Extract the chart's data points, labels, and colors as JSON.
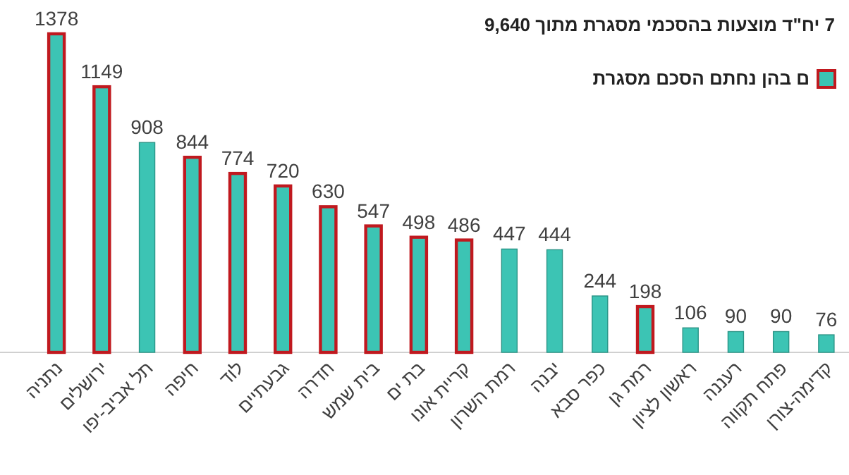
{
  "chart_data": {
    "type": "bar",
    "title": "7 יח\"ד מוצעות בהסכמי מסגרת מתוך 9,640",
    "categories": [
      "נתניה",
      "ירושלים",
      "תל אביב-יפו",
      "חיפה",
      "לוד",
      "גבעתיים",
      "חדרה",
      "בית שמש",
      "בת ים",
      "קריית אונו",
      "רמת השרון",
      "יבנה",
      "כפר סבא",
      "רמת גן",
      "ראשון לציון",
      "רעננה",
      "פתח תקווה",
      "קדימה-צורן"
    ],
    "series": [
      {
        "color": "#3cc4b4",
        "values": [
          null,
          null,
          908,
          null,
          null,
          null,
          null,
          null,
          null,
          null,
          447,
          444,
          244,
          null,
          106,
          90,
          90,
          76
        ]
      },
      {
        "name": "ם בהן נחתם הסכם מסגרת",
        "color": "#c0191f",
        "values": [
          1378,
          1149,
          null,
          844,
          774,
          720,
          630,
          547,
          498,
          486,
          null,
          null,
          null,
          198,
          null,
          null,
          null,
          null
        ]
      }
    ],
    "data_labels": true,
    "legend": "top right"
  }
}
